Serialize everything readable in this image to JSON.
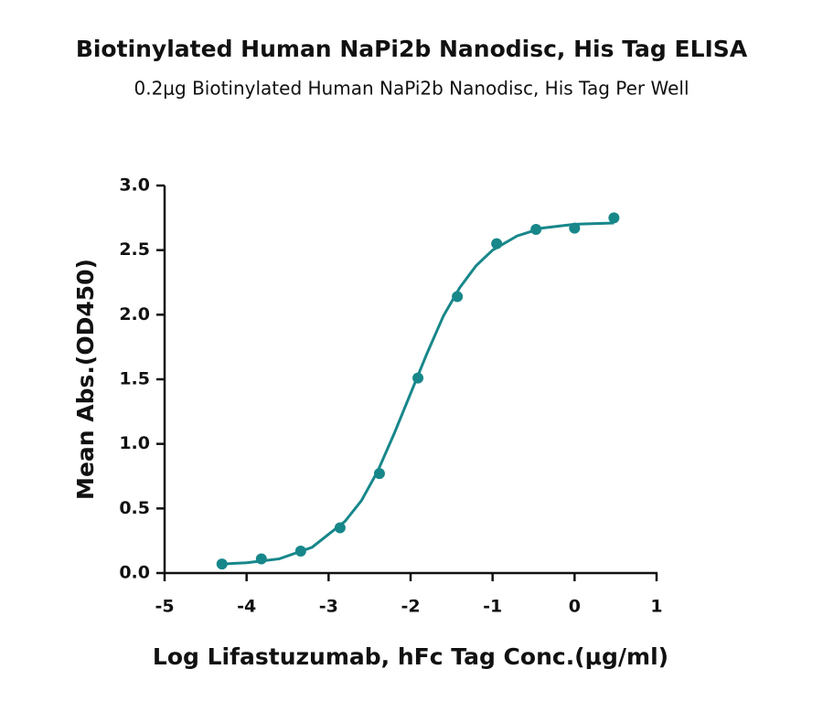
{
  "chart_data": {
    "type": "scatter",
    "title": "Biotinylated Human NaPi2b Nanodisc, His Tag ELISA",
    "subtitle": "0.2μg Biotinylated Human NaPi2b Nanodisc, His Tag Per Well",
    "x_label": "Log Lifastuzumab, hFc Tag Conc.(μg/ml)",
    "y_label": "Mean Abs.(OD450)",
    "color": "#17878a",
    "x": [
      -4.3,
      -3.82,
      -3.34,
      -2.86,
      -2.38,
      -1.91,
      -1.43,
      -0.95,
      -0.47,
      0.0,
      0.48
    ],
    "values": [
      0.07,
      0.11,
      0.17,
      0.35,
      0.77,
      1.51,
      2.14,
      2.55,
      2.66,
      2.67,
      2.75
    ],
    "curve": {
      "x": [
        -4.3,
        -4.0,
        -3.6,
        -3.2,
        -2.8,
        -2.6,
        -2.4,
        -2.2,
        -2.0,
        -1.8,
        -1.6,
        -1.4,
        -1.2,
        -1.0,
        -0.7,
        -0.4,
        0,
        0.48
      ],
      "values": [
        0.07,
        0.08,
        0.11,
        0.2,
        0.4,
        0.56,
        0.79,
        1.08,
        1.39,
        1.7,
        1.99,
        2.21,
        2.38,
        2.5,
        2.61,
        2.67,
        2.7,
        2.71
      ]
    },
    "xlim": [
      -5,
      1
    ],
    "xticks": [
      -5,
      -4,
      -3,
      -2,
      -1,
      0,
      1
    ],
    "ylim": [
      0,
      3
    ],
    "yticks": [
      {
        "value": 0,
        "label": "0.0"
      },
      {
        "value": 0.5,
        "label": "0.5"
      },
      {
        "value": 1,
        "label": "1.0"
      },
      {
        "value": 1.5,
        "label": "1.5"
      },
      {
        "value": 2,
        "label": "2.0"
      },
      {
        "value": 2.5,
        "label": "2.5"
      },
      {
        "value": 3,
        "label": "3.0"
      }
    ]
  }
}
